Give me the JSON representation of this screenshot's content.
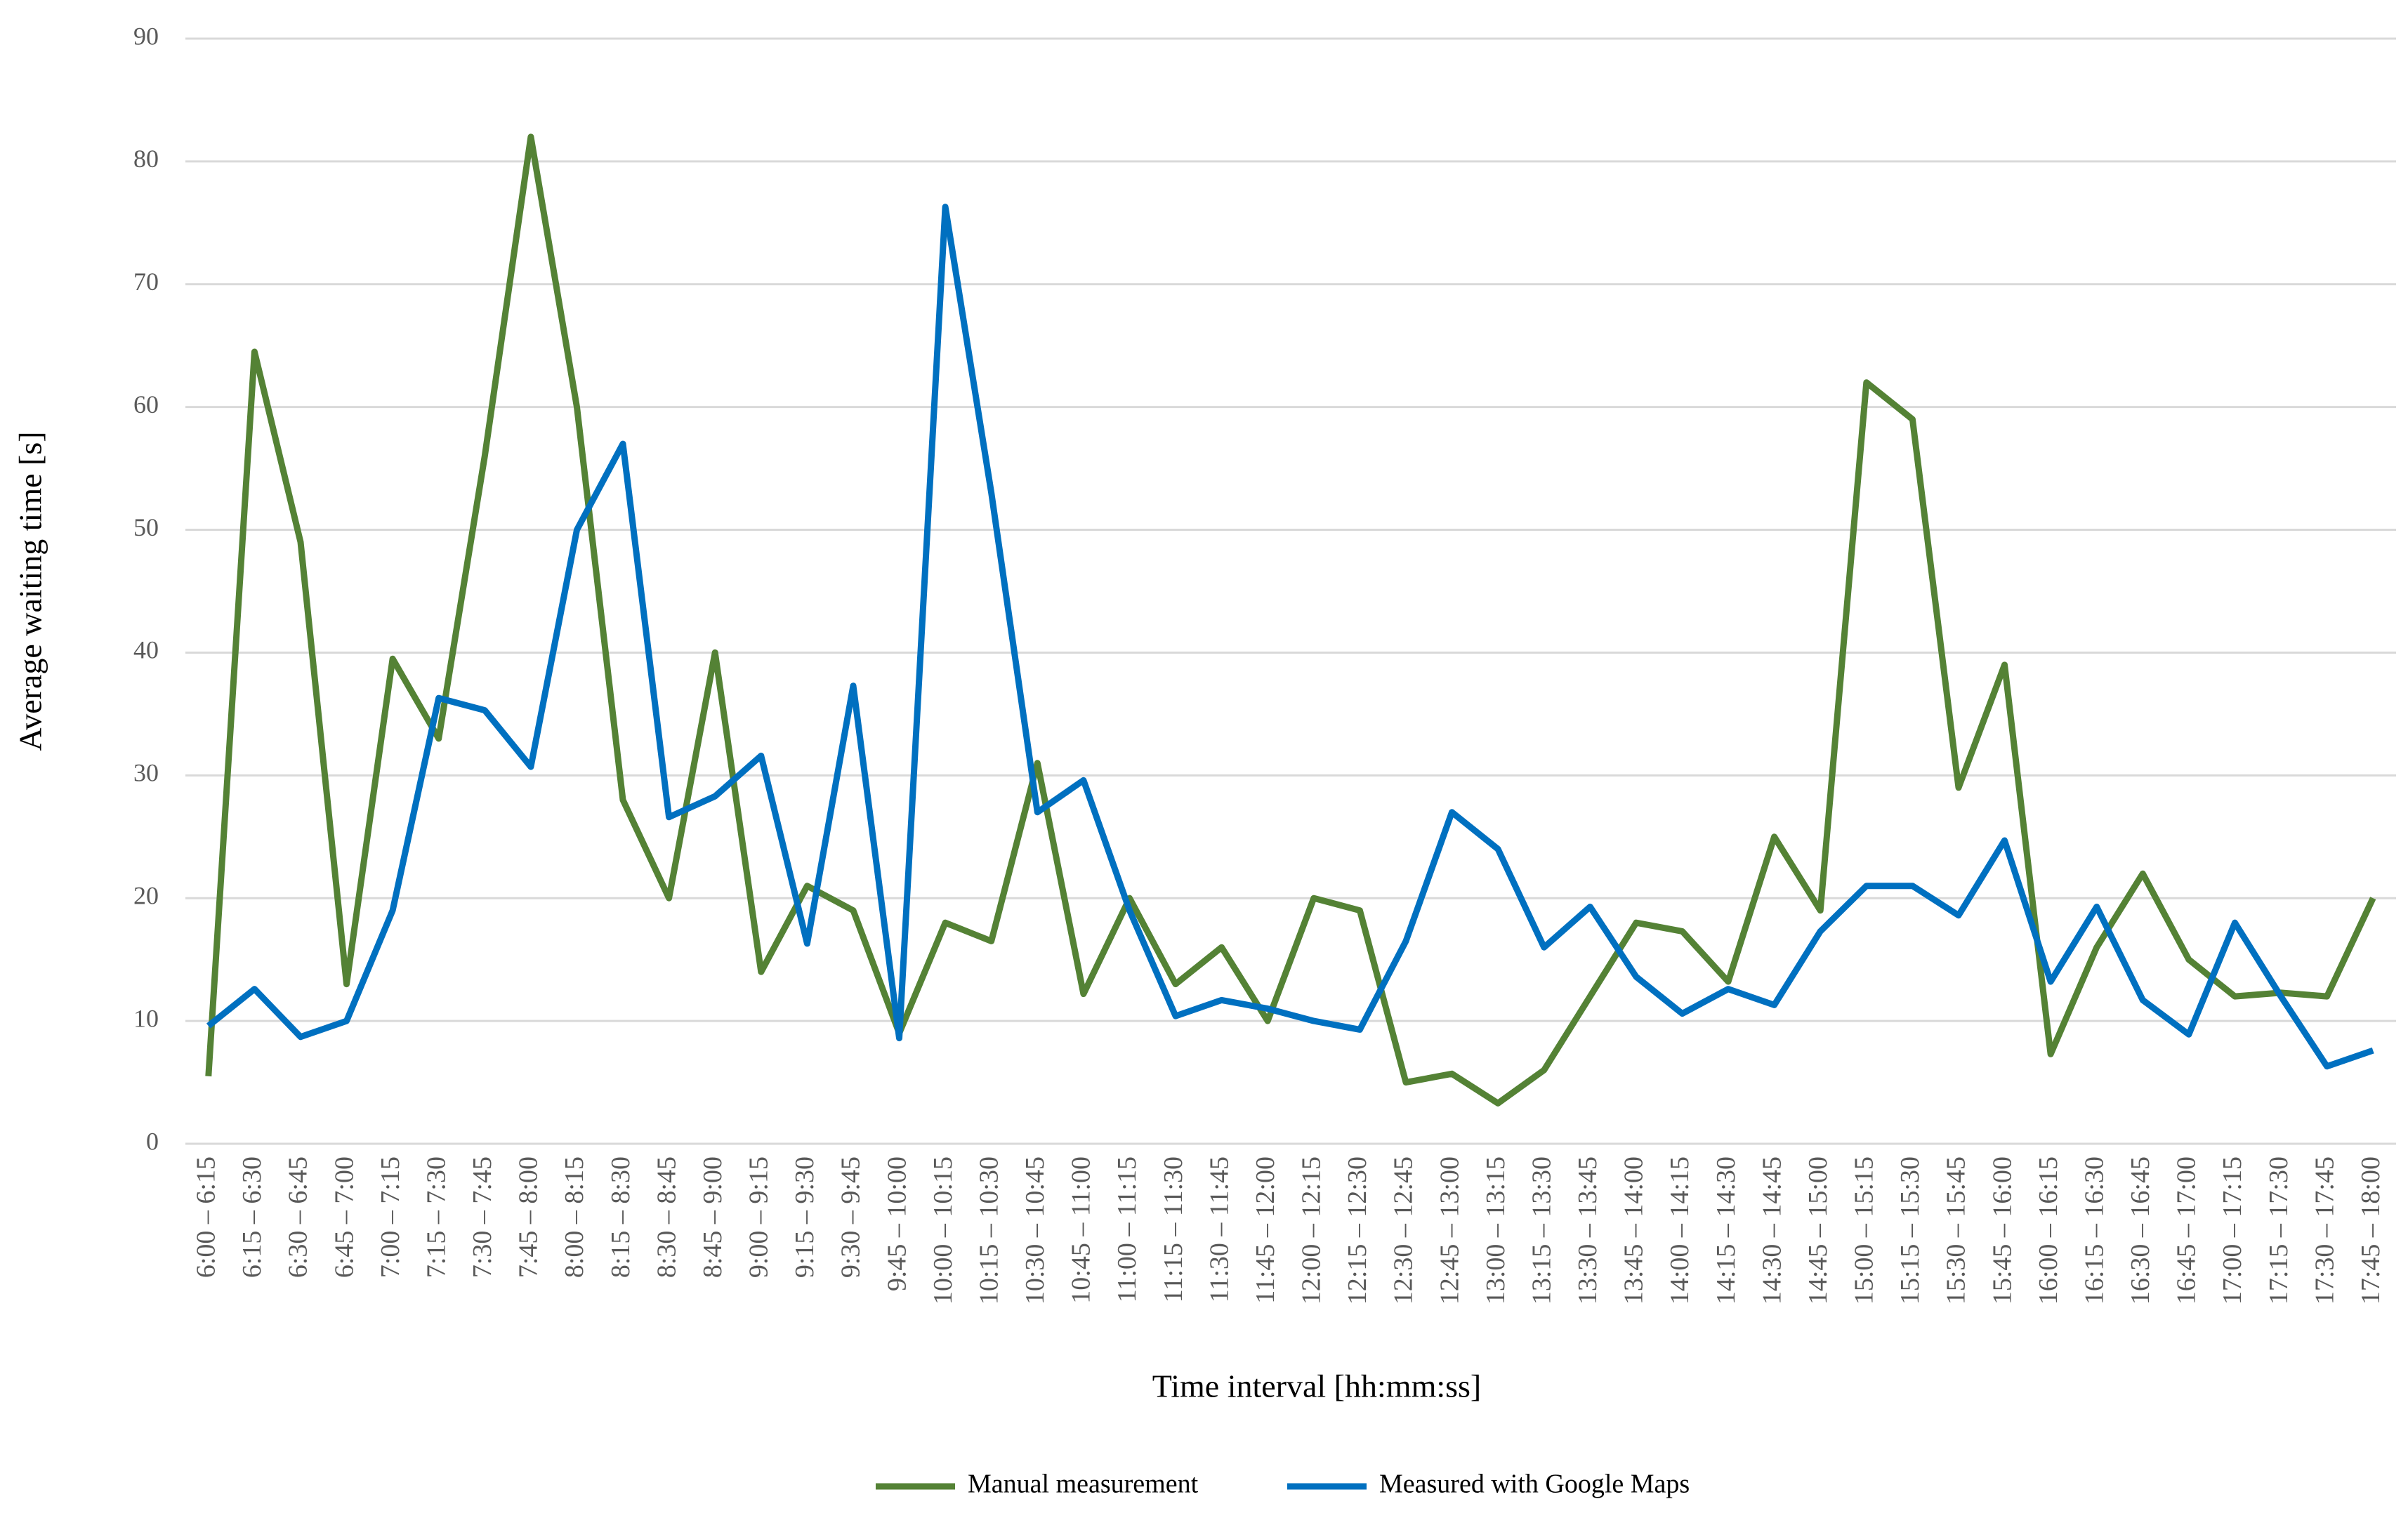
{
  "chart_data": {
    "type": "line",
    "xlabel": "Time interval [hh:mm:ss]",
    "ylabel": "Average waiting time [s]",
    "categories": [
      "6:00 – 6:15",
      "6:15 – 6:30",
      "6:30 – 6:45",
      "6:45 – 7:00",
      "7:00 – 7:15",
      "7:15 – 7:30",
      "7:30 – 7:45",
      "7:45 – 8:00",
      "8:00 – 8:15",
      "8:15 – 8:30",
      "8:30 – 8:45",
      "8:45 – 9:00",
      "9:00 – 9:15",
      "9:15 – 9:30",
      "9:30 – 9:45",
      "9:45 – 10:00",
      "10:00 – 10:15",
      "10:15 – 10:30",
      "10:30 – 10:45",
      "10:45 – 11:00",
      "11:00 – 11:15",
      "11:15 – 11:30",
      "11:30 – 11:45",
      "11:45 – 12:00",
      "12:00 – 12:15",
      "12:15 – 12:30",
      "12:30 – 12:45",
      "12:45 – 13:00",
      "13:00 – 13:15",
      "13:15 – 13:30",
      "13:30 – 13:45",
      "13:45 – 14:00",
      "14:00 – 14:15",
      "14:15 – 14:30",
      "14:30 – 14:45",
      "14:45 – 15:00",
      "15:00 – 15:15",
      "15:15 – 15:30",
      "15:30 – 15:45",
      "15:45 – 16:00",
      "16:00 – 16:15",
      "16:15 – 16:30",
      "16:30 – 16:45",
      "16:45 – 17:00",
      "17:00 – 17:15",
      "17:15 – 17:30",
      "17:30 – 17:45",
      "17:45 – 18:00"
    ],
    "series": [
      {
        "name": "Manual measurement",
        "color": "#548235",
        "values": [
          5.5,
          64.5,
          49,
          13,
          39.5,
          33,
          56,
          82,
          60,
          28,
          20,
          40,
          14,
          21,
          19,
          9,
          18,
          16.5,
          31,
          12.2,
          20,
          13,
          16,
          10,
          20,
          19,
          5,
          5.7,
          3.3,
          6,
          12,
          18,
          17.3,
          13.2,
          25,
          19,
          62,
          59,
          29,
          39,
          7.3,
          16,
          22,
          15,
          12,
          12.3,
          12,
          20
        ]
      },
      {
        "name": "Measured with Google Maps",
        "color": "#0070c0",
        "values": [
          9.6,
          12.6,
          8.7,
          10,
          19,
          36.3,
          35.3,
          30.7,
          50,
          57,
          26.6,
          28.3,
          31.6,
          16.3,
          37.3,
          8.6,
          76.3,
          53,
          27,
          29.6,
          19,
          10.4,
          11.7,
          11,
          10,
          9.3,
          16.5,
          27,
          24,
          16,
          19.3,
          13.6,
          10.6,
          12.6,
          11.3,
          17.3,
          21,
          21,
          18.6,
          24.7,
          13.2,
          19.3,
          11.7,
          8.9,
          18,
          12,
          6.3,
          7.6
        ]
      }
    ],
    "ylim": [
      0,
      90
    ],
    "yticks": [
      0,
      10,
      20,
      30,
      40,
      50,
      60,
      70,
      80,
      90
    ],
    "grid": true,
    "legend": "bottom"
  }
}
